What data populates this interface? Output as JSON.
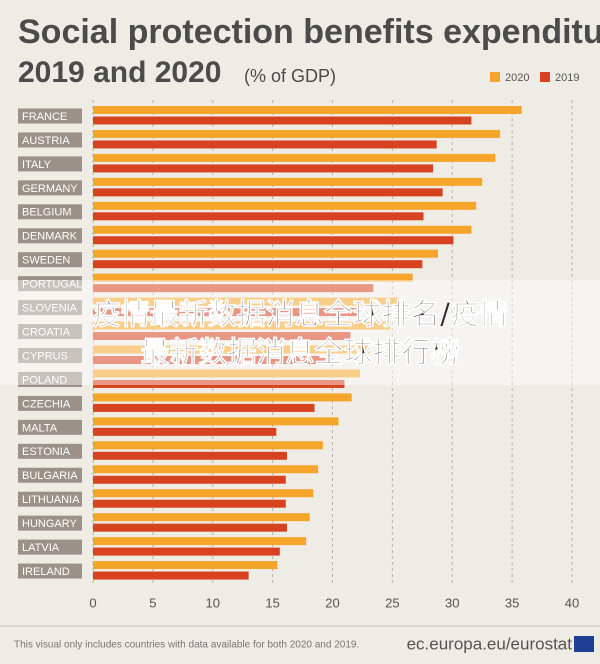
{
  "chart_data": {
    "type": "hbar",
    "title": [
      "Social protection benefits expenditure,",
      "2019 and 2020"
    ],
    "subtitle": "(% of GDP)",
    "categories": [
      "FRANCE",
      "AUSTRIA",
      "ITALY",
      "GERMANY",
      "BELGIUM",
      "DENMARK",
      "SWEDEN",
      "PORTUGAL",
      "SLOVENIA",
      "CROATIA",
      "CYPRUS",
      "POLAND",
      "CZECHIA",
      "MALTA",
      "ESTONIA",
      "BULGARIA",
      "LITHUANIA",
      "HUNGARY",
      "LATVIA",
      "IRELAND"
    ],
    "series": [
      {
        "name": "2020",
        "color": "#f5a52a",
        "values": [
          35.8,
          34.0,
          33.6,
          32.5,
          32.0,
          31.6,
          28.8,
          26.7,
          25.6,
          24.8,
          23.1,
          22.3,
          21.6,
          20.5,
          19.2,
          18.8,
          18.4,
          18.1,
          17.8,
          15.4
        ]
      },
      {
        "name": "2019",
        "color": "#d8431f",
        "values": [
          31.6,
          28.7,
          28.4,
          29.2,
          27.6,
          30.1,
          27.5,
          23.4,
          22.3,
          21.5,
          19.4,
          21.0,
          18.5,
          15.3,
          16.2,
          16.1,
          16.1,
          16.2,
          15.6,
          13.0
        ]
      }
    ],
    "xlim": [
      0,
      40
    ],
    "xticks": [
      0,
      5,
      10,
      15,
      20,
      25,
      30,
      35,
      40
    ],
    "grid": true,
    "legend": "top-right"
  },
  "overlay": [
    "疫情最新数据消息全球排名/疫情",
    "最新数据消息全球排行榜"
  ],
  "footer": {
    "note": "This visual only includes countries with data available for both 2020 and 2019.",
    "source": "ec.europa.eu/eurostat"
  }
}
